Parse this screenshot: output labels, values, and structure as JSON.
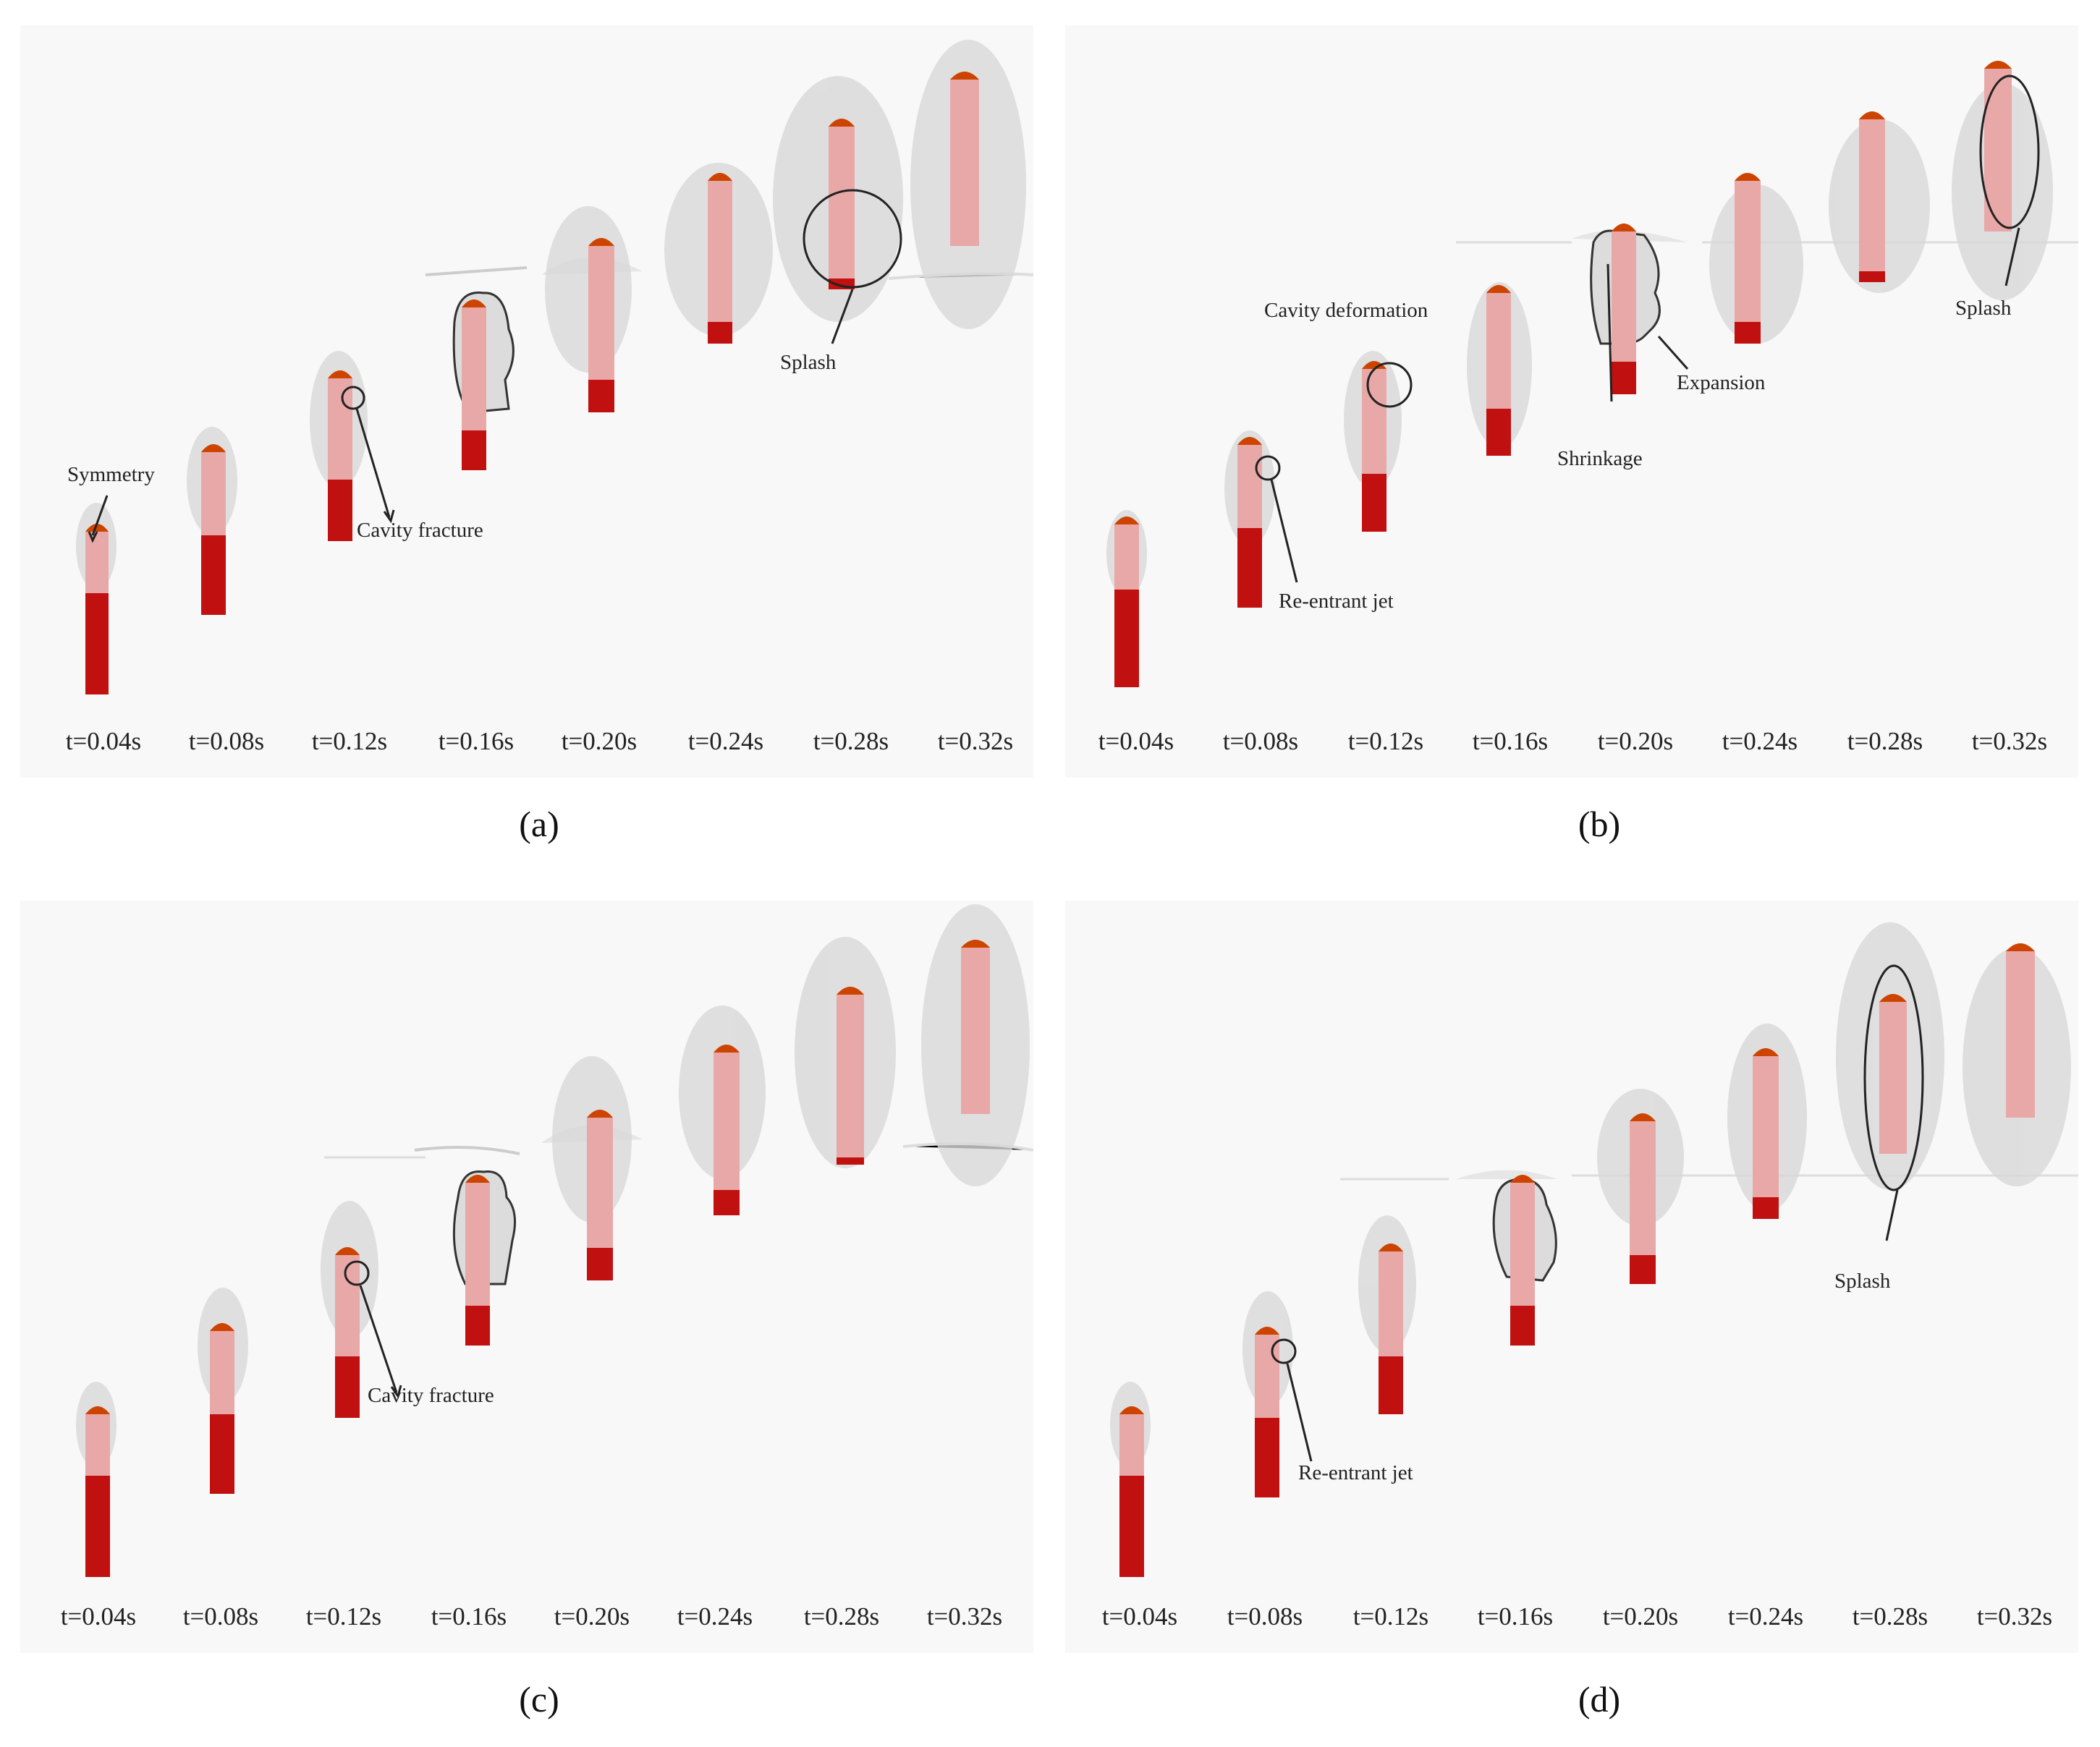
{
  "figure": {
    "time_labels": [
      "t=0.04s",
      "t=0.08s",
      "t=0.12s",
      "t=0.16s",
      "t=0.20s",
      "t=0.24s",
      "t=0.28s",
      "t=0.32s"
    ],
    "panels": [
      {
        "caption": "(a)",
        "annotations": {
          "symmetry": "Symmetry",
          "cavity_fracture": "Cavity fracture",
          "splash": "Splash"
        }
      },
      {
        "caption": "(b)",
        "annotations": {
          "cavity_deformation": "Cavity deformation",
          "re_entrant_jet": "Re-entrant jet",
          "shrinkage": "Shrinkage",
          "expansion": "Expansion",
          "splash": "Splash"
        }
      },
      {
        "caption": "(c)",
        "annotations": {
          "cavity_fracture": "Cavity fracture"
        }
      },
      {
        "caption": "(d)",
        "annotations": {
          "re_entrant_jet": "Re-entrant jet",
          "splash": "Splash"
        }
      }
    ],
    "colors": {
      "projectile": "#c01010",
      "cavity": "#d6d6d6",
      "tip": "#cc4400",
      "background": "#f8f8f8"
    }
  }
}
